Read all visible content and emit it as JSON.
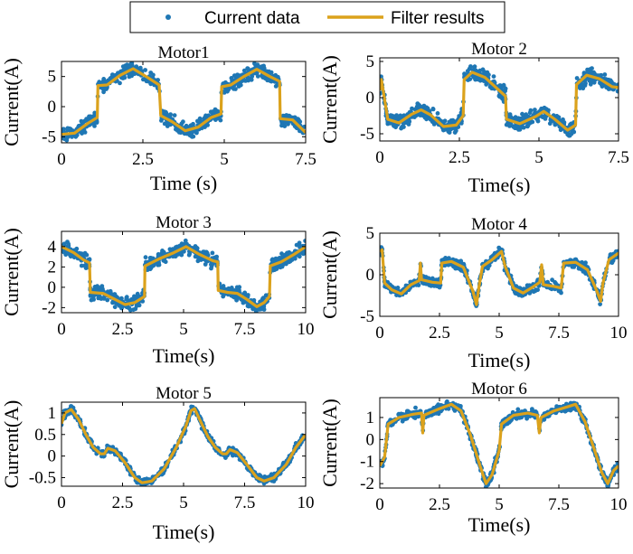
{
  "legend": {
    "position": "top",
    "entries": [
      {
        "label": "Current data",
        "marker": "dot"
      },
      {
        "label": "Filter results",
        "marker": "line"
      }
    ]
  },
  "colors": {
    "data": "#1f77b4",
    "filter": "#dba21c",
    "axes": "#000000",
    "background": "#ffffff"
  },
  "chart_data": [
    {
      "type": "line",
      "title": "Motor1",
      "xlabel": "Time (s)",
      "ylabel": "Current(A)",
      "xlim": [
        0,
        7.5
      ],
      "ylim": [
        -6,
        7.5
      ],
      "xticks": [
        0,
        2.5,
        5,
        7.5
      ],
      "xtick_labels": [
        "0",
        "2.5",
        "5",
        "7.5"
      ],
      "yticks": [
        -5,
        0,
        5
      ],
      "ytick_labels": [
        "-5",
        "0",
        "5"
      ],
      "series": [
        {
          "name": "Filter results",
          "points": [
            [
              0,
              -4.6
            ],
            [
              0.4,
              -4.4
            ],
            [
              0.8,
              -2.8
            ],
            [
              1.1,
              -1.8
            ],
            [
              1.12,
              3.5
            ],
            [
              1.4,
              3.6
            ],
            [
              1.8,
              5.2
            ],
            [
              2.2,
              6.3
            ],
            [
              2.6,
              5.0
            ],
            [
              3.0,
              3.6
            ],
            [
              3.05,
              -1.5
            ],
            [
              3.4,
              -2.5
            ],
            [
              3.8,
              -4.0
            ],
            [
              4.2,
              -3.4
            ],
            [
              4.6,
              -1.8
            ],
            [
              4.9,
              -1.2
            ],
            [
              4.92,
              3.3
            ],
            [
              5.2,
              3.6
            ],
            [
              5.6,
              5.0
            ],
            [
              6.0,
              6.2
            ],
            [
              6.4,
              5.0
            ],
            [
              6.7,
              4.2
            ],
            [
              6.72,
              -2.0
            ],
            [
              7.1,
              -2.2
            ],
            [
              7.5,
              -4.3
            ]
          ]
        },
        {
          "name": "Current data",
          "noise": 0.9
        }
      ]
    },
    {
      "type": "line",
      "title": "Motor 2",
      "xlabel": "Time(s)",
      "ylabel": "Current(A)",
      "xlim": [
        0,
        7.5
      ],
      "ylim": [
        -6,
        5.5
      ],
      "xticks": [
        0,
        2.5,
        5,
        7.5
      ],
      "xtick_labels": [
        "0",
        "2.5",
        "5",
        "7.5"
      ],
      "yticks": [
        -5,
        0,
        5
      ],
      "ytick_labels": [
        "-5",
        "0",
        "5"
      ],
      "series": [
        {
          "name": "Filter results",
          "points": [
            [
              0,
              1.0
            ],
            [
              0.05,
              2.5
            ],
            [
              0.25,
              -3.0
            ],
            [
              0.6,
              -3.5
            ],
            [
              1.0,
              -2.3
            ],
            [
              1.3,
              -1.7
            ],
            [
              1.6,
              -2.4
            ],
            [
              2.0,
              -4.0
            ],
            [
              2.4,
              -3.8
            ],
            [
              2.62,
              -2.5
            ],
            [
              2.65,
              2.5
            ],
            [
              2.9,
              3.5
            ],
            [
              3.3,
              2.8
            ],
            [
              3.7,
              1.2
            ],
            [
              3.95,
              0.2
            ],
            [
              3.98,
              -3.0
            ],
            [
              4.4,
              -3.6
            ],
            [
              4.9,
              -2.6
            ],
            [
              5.15,
              -1.9
            ],
            [
              5.5,
              -3.0
            ],
            [
              5.9,
              -4.5
            ],
            [
              6.15,
              -3.8
            ],
            [
              6.18,
              1.8
            ],
            [
              6.5,
              3.1
            ],
            [
              6.9,
              2.6
            ],
            [
              7.3,
              1.5
            ],
            [
              7.5,
              1.4
            ]
          ]
        },
        {
          "name": "Current data",
          "noise": 0.9
        }
      ]
    },
    {
      "type": "line",
      "title": "Motor 3",
      "xlabel": "Time(s)",
      "ylabel": "Current(A)",
      "xlim": [
        0,
        10
      ],
      "ylim": [
        -2.5,
        5.5
      ],
      "xticks": [
        0,
        2.5,
        5,
        7.5,
        10
      ],
      "xtick_labels": [
        "0",
        "2.5",
        "5",
        "7.5",
        "10"
      ],
      "yticks": [
        -2,
        0,
        2,
        4
      ],
      "ytick_labels": [
        "-2",
        "0",
        "2",
        "4"
      ],
      "series": [
        {
          "name": "Filter results",
          "points": [
            [
              0,
              4.0
            ],
            [
              0.5,
              3.4
            ],
            [
              0.9,
              2.7
            ],
            [
              1.15,
              2.4
            ],
            [
              1.18,
              -0.5
            ],
            [
              1.7,
              -0.6
            ],
            [
              2.2,
              -1.2
            ],
            [
              2.6,
              -1.7
            ],
            [
              3.0,
              -1.5
            ],
            [
              3.4,
              -0.9
            ],
            [
              3.42,
              2.1
            ],
            [
              4.0,
              2.8
            ],
            [
              4.6,
              3.4
            ],
            [
              5.1,
              4.0
            ],
            [
              5.6,
              3.3
            ],
            [
              6.2,
              2.6
            ],
            [
              6.4,
              2.5
            ],
            [
              6.42,
              -0.3
            ],
            [
              6.8,
              -0.5
            ],
            [
              7.2,
              -0.6
            ],
            [
              7.6,
              -1.2
            ],
            [
              8.0,
              -1.9
            ],
            [
              8.3,
              -1.5
            ],
            [
              8.52,
              -0.9
            ],
            [
              8.55,
              2.1
            ],
            [
              9.0,
              2.5
            ],
            [
              9.5,
              3.2
            ],
            [
              10,
              4.0
            ]
          ]
        },
        {
          "name": "Current data",
          "noise": 0.55
        }
      ]
    },
    {
      "type": "line",
      "title": "Motor 4",
      "xlabel": "Time(s)",
      "ylabel": "Current(A)",
      "xlim": [
        0,
        10
      ],
      "ylim": [
        -5,
        5
      ],
      "xticks": [
        0,
        2.5,
        5,
        7.5,
        10
      ],
      "xtick_labels": [
        "0",
        "2.5",
        "5",
        "7.5",
        "10"
      ],
      "yticks": [
        -5,
        0,
        5
      ],
      "ytick_labels": [
        "-5",
        "0",
        "5"
      ],
      "series": [
        {
          "name": "Filter results",
          "points": [
            [
              0,
              2.8
            ],
            [
              0.1,
              3.0
            ],
            [
              0.2,
              -1.0
            ],
            [
              0.5,
              -1.8
            ],
            [
              0.9,
              -2.3
            ],
            [
              1.3,
              -1.2
            ],
            [
              1.65,
              -0.7
            ],
            [
              1.7,
              1.4
            ],
            [
              1.75,
              -0.6
            ],
            [
              2.2,
              -0.9
            ],
            [
              2.55,
              -1.0
            ],
            [
              2.6,
              1.4
            ],
            [
              3.0,
              1.6
            ],
            [
              3.5,
              0.9
            ],
            [
              3.9,
              -2.0
            ],
            [
              4.05,
              -3.6
            ],
            [
              4.15,
              -1.5
            ],
            [
              4.3,
              1.0
            ],
            [
              4.7,
              1.8
            ],
            [
              5.1,
              2.8
            ],
            [
              5.25,
              1.0
            ],
            [
              5.6,
              -1.6
            ],
            [
              6.0,
              -2.2
            ],
            [
              6.4,
              -1.5
            ],
            [
              6.7,
              -0.9
            ],
            [
              6.78,
              1.2
            ],
            [
              6.85,
              -1.2
            ],
            [
              7.3,
              -1.4
            ],
            [
              7.6,
              -1.6
            ],
            [
              7.7,
              1.4
            ],
            [
              8.2,
              1.5
            ],
            [
              8.7,
              0.6
            ],
            [
              9.1,
              -2.0
            ],
            [
              9.25,
              -3.2
            ],
            [
              9.35,
              -1.0
            ],
            [
              9.6,
              1.8
            ],
            [
              10,
              2.6
            ]
          ]
        },
        {
          "name": "Current data",
          "noise": 0.5
        }
      ]
    },
    {
      "type": "line",
      "title": "Motor 5",
      "xlabel": "Time(s)",
      "ylabel": "Current(A)",
      "xlim": [
        0,
        10
      ],
      "ylim": [
        -0.7,
        1.25
      ],
      "xticks": [
        0,
        2.5,
        5,
        7.5,
        10
      ],
      "xtick_labels": [
        "0",
        "2.5",
        "5",
        "7.5",
        "10"
      ],
      "yticks": [
        -0.5,
        0,
        0.5,
        1
      ],
      "ytick_labels": [
        "-0.5",
        "0",
        "0.5",
        "1"
      ],
      "series": [
        {
          "name": "Filter results",
          "points": [
            [
              0,
              0.75
            ],
            [
              0.15,
              1.0
            ],
            [
              0.4,
              1.08
            ],
            [
              0.7,
              0.85
            ],
            [
              1.0,
              0.5
            ],
            [
              1.3,
              0.2
            ],
            [
              1.6,
              0.05
            ],
            [
              1.75,
              0.05
            ],
            [
              1.9,
              0.18
            ],
            [
              2.2,
              0.12
            ],
            [
              2.6,
              -0.15
            ],
            [
              3.0,
              -0.5
            ],
            [
              3.3,
              -0.62
            ],
            [
              3.7,
              -0.58
            ],
            [
              4.2,
              -0.3
            ],
            [
              4.7,
              0.2
            ],
            [
              5.1,
              0.7
            ],
            [
              5.3,
              1.05
            ],
            [
              5.45,
              1.1
            ],
            [
              5.7,
              0.8
            ],
            [
              6.0,
              0.45
            ],
            [
              6.3,
              0.2
            ],
            [
              6.6,
              0.05
            ],
            [
              6.75,
              0.05
            ],
            [
              6.9,
              0.15
            ],
            [
              7.2,
              0.08
            ],
            [
              7.6,
              -0.2
            ],
            [
              8.0,
              -0.5
            ],
            [
              8.3,
              -0.58
            ],
            [
              8.7,
              -0.5
            ],
            [
              9.2,
              -0.2
            ],
            [
              9.6,
              0.2
            ],
            [
              10,
              0.5
            ]
          ]
        },
        {
          "name": "Current data",
          "noise": 0.07
        }
      ]
    },
    {
      "type": "line",
      "title": "Motor 6",
      "xlabel": "Time(s)",
      "ylabel": "Current(A)",
      "xlim": [
        0,
        10
      ],
      "ylim": [
        -2.2,
        1.9
      ],
      "xticks": [
        0,
        2.5,
        5,
        7.5,
        10
      ],
      "xtick_labels": [
        "0",
        "2.5",
        "5",
        "7.5",
        "10"
      ],
      "yticks": [
        -2,
        -1,
        0,
        1
      ],
      "ytick_labels": [
        "-2",
        "-1",
        "0",
        "1"
      ],
      "series": [
        {
          "name": "Filter results",
          "points": [
            [
              0,
              -1.2
            ],
            [
              0.2,
              -0.8
            ],
            [
              0.35,
              0.7
            ],
            [
              0.8,
              1.0
            ],
            [
              1.4,
              1.15
            ],
            [
              1.75,
              1.2
            ],
            [
              1.8,
              0.3
            ],
            [
              1.85,
              1.1
            ],
            [
              2.5,
              1.4
            ],
            [
              3.0,
              1.6
            ],
            [
              3.4,
              1.3
            ],
            [
              3.8,
              0.2
            ],
            [
              4.2,
              -1.2
            ],
            [
              4.45,
              -2.0
            ],
            [
              4.7,
              -1.6
            ],
            [
              5.0,
              -0.5
            ],
            [
              5.1,
              0.7
            ],
            [
              5.6,
              1.1
            ],
            [
              6.2,
              1.2
            ],
            [
              6.6,
              1.1
            ],
            [
              6.68,
              0.3
            ],
            [
              6.75,
              1.0
            ],
            [
              7.3,
              1.3
            ],
            [
              7.9,
              1.5
            ],
            [
              8.2,
              1.6
            ],
            [
              8.6,
              0.8
            ],
            [
              9.0,
              -0.5
            ],
            [
              9.3,
              -1.5
            ],
            [
              9.55,
              -2.0
            ],
            [
              9.8,
              -1.4
            ],
            [
              10,
              -1.2
            ]
          ]
        },
        {
          "name": "Current data",
          "noise": 0.17
        }
      ]
    }
  ]
}
